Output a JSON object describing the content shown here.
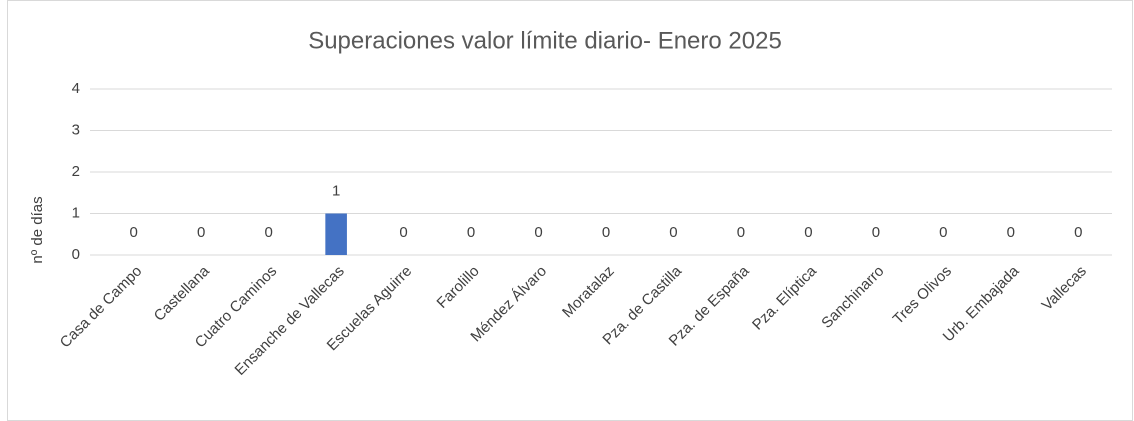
{
  "chart_data": {
    "type": "bar",
    "title": "Superaciones valor límite diario- Enero 2025",
    "y_label": "nº de días",
    "categories": [
      "Casa de Campo",
      "Castellana",
      "Cuatro Caminos",
      "Ensanche de Vallecas",
      "Escuelas Aguirre",
      "Farolillo",
      "Méndez Álvaro",
      "Moratalaz",
      "Pza. de Castilla",
      "Pza. de España",
      "Pza. Elíptica",
      "Sanchinarro",
      "Tres Olivos",
      "Urb. Embajada",
      "Vallecas"
    ],
    "values": [
      0,
      0,
      0,
      1,
      0,
      0,
      0,
      0,
      0,
      0,
      0,
      0,
      0,
      0,
      0
    ],
    "color": "#4472c4",
    "ylim": [
      0,
      4
    ],
    "yticks": [
      0,
      1,
      2,
      3,
      4
    ],
    "grid": true
  }
}
